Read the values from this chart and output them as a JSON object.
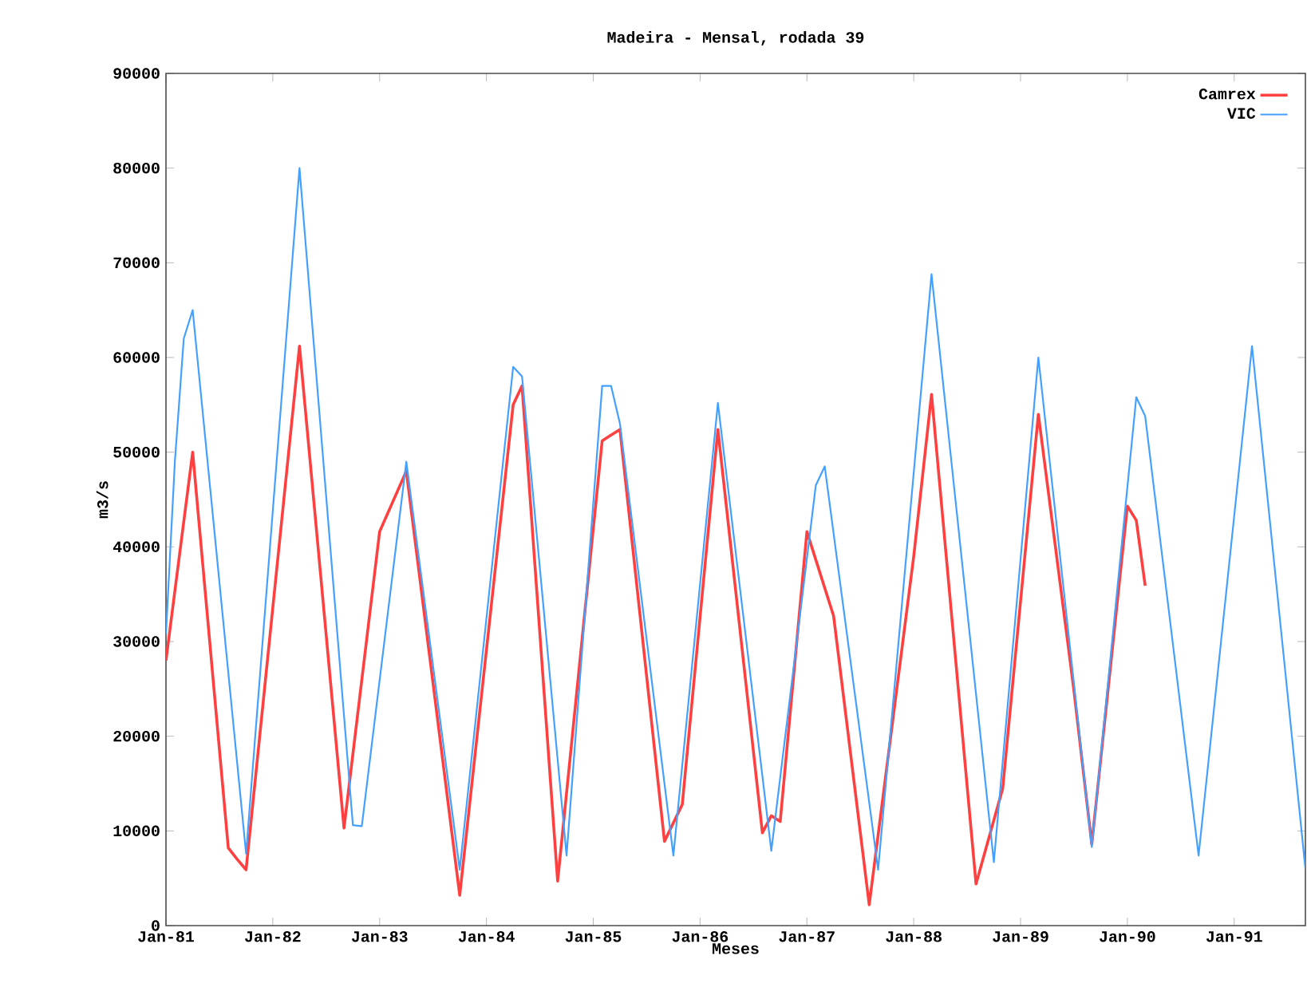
{
  "chart_data": {
    "type": "line",
    "title": "Madeira - Mensal, rodada 39",
    "xlabel": "Meses",
    "ylabel": "m3/s",
    "xlim": [
      "1981-01",
      "1991-09"
    ],
    "xticks": [
      {
        "value": "1981-01",
        "label": "Jan-81"
      },
      {
        "value": "1982-01",
        "label": "Jan-82"
      },
      {
        "value": "1983-01",
        "label": "Jan-83"
      },
      {
        "value": "1984-01",
        "label": "Jan-84"
      },
      {
        "value": "1985-01",
        "label": "Jan-85"
      },
      {
        "value": "1986-01",
        "label": "Jan-86"
      },
      {
        "value": "1987-01",
        "label": "Jan-87"
      },
      {
        "value": "1988-01",
        "label": "Jan-88"
      },
      {
        "value": "1989-01",
        "label": "Jan-89"
      },
      {
        "value": "1990-01",
        "label": "Jan-90"
      },
      {
        "value": "1991-01",
        "label": "Jan-91"
      }
    ],
    "ylim": [
      0,
      90000
    ],
    "yticks": [
      0,
      10000,
      20000,
      30000,
      40000,
      50000,
      60000,
      70000,
      80000,
      90000
    ],
    "legend": "top right",
    "grid": false,
    "series": [
      {
        "name": "Camrex",
        "color": "#ff4040",
        "x": [
          "1981-01",
          "1981-04",
          "1981-08",
          "1981-09",
          "1981-10",
          "1982-04",
          "1982-09",
          "1983-01",
          "1983-04",
          "1983-10",
          "1984-04",
          "1984-05",
          "1984-09",
          "1985-02",
          "1985-04",
          "1985-09",
          "1985-11",
          "1986-03",
          "1986-08",
          "1986-09",
          "1986-10",
          "1987-01",
          "1987-04",
          "1987-08",
          "1988-01",
          "1988-03",
          "1988-08",
          "1988-11",
          "1989-03",
          "1989-07",
          "1989-09",
          "1990-01",
          "1990-02",
          "1990-03"
        ],
        "values": [
          28000,
          50000,
          8200,
          7000,
          5900,
          61200,
          10300,
          41600,
          48000,
          3200,
          55000,
          57000,
          4700,
          51200,
          52400,
          8900,
          12800,
          52400,
          9800,
          11600,
          11000,
          41600,
          32700,
          2200,
          39000,
          56100,
          4400,
          14500,
          54000,
          24800,
          8600,
          44300,
          42800,
          35900
        ]
      },
      {
        "name": "VIC",
        "color": "#44a0ff",
        "x": [
          "1981-01",
          "1981-02",
          "1981-03",
          "1981-04",
          "1981-10",
          "1982-04",
          "1982-10",
          "1982-11",
          "1983-04",
          "1983-10",
          "1984-04",
          "1984-05",
          "1984-10",
          "1985-02",
          "1985-03",
          "1985-04",
          "1985-10",
          "1986-03",
          "1986-09",
          "1987-02",
          "1987-03",
          "1987-09",
          "1988-03",
          "1988-10",
          "1989-03",
          "1989-09",
          "1990-02",
          "1990-03",
          "1990-09",
          "1991-03",
          "1991-09"
        ],
        "values": [
          30800,
          49000,
          62000,
          65000,
          7600,
          80000,
          10600,
          10500,
          49000,
          5900,
          59000,
          58000,
          7400,
          57000,
          57000,
          53000,
          7400,
          55200,
          7900,
          46500,
          48500,
          5900,
          68800,
          6700,
          60000,
          8300,
          55800,
          53800,
          7400,
          61200,
          6000
        ]
      }
    ]
  }
}
